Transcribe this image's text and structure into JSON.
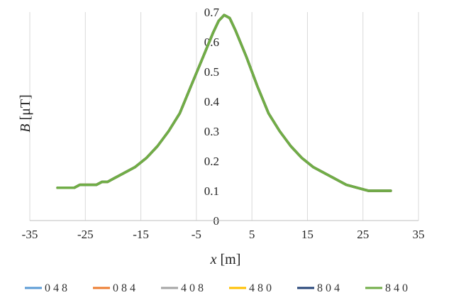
{
  "chart_data": {
    "type": "line",
    "xlabel": {
      "var": "x",
      "unit": " [m]"
    },
    "ylabel": {
      "var": "B",
      "unit": " [μT]"
    },
    "xlim": [
      -35,
      35
    ],
    "ylim": [
      0,
      0.7
    ],
    "xticks": [
      "-35",
      "-25",
      "-15",
      "-5",
      "5",
      "15",
      "25",
      "35"
    ],
    "yticks": [
      "0",
      "0.1",
      "0.2",
      "0.3",
      "0.4",
      "0.5",
      "0.6",
      "0.7"
    ],
    "grid": "vertical",
    "legend_position": "bottom",
    "series": [
      {
        "name": "0 4 8",
        "color": "#5b9bd5"
      },
      {
        "name": "0 8 4",
        "color": "#ed7d31"
      },
      {
        "name": "4 0 8",
        "color": "#a5a5a5"
      },
      {
        "name": "4 8 0",
        "color": "#ffc000"
      },
      {
        "name": "8 0 4",
        "color": "#264478"
      },
      {
        "name": "8 4 0",
        "color": "#70ad47"
      }
    ],
    "x": [
      -30,
      -27,
      -26,
      -23,
      -22,
      -21,
      -20,
      -18,
      -16,
      -14,
      -12,
      -10,
      -8,
      -6,
      -4,
      -2,
      -1,
      0,
      1,
      2,
      4,
      6,
      8,
      10,
      12,
      14,
      16,
      18,
      20,
      22,
      24,
      26,
      28,
      30
    ],
    "y": [
      0.11,
      0.11,
      0.12,
      0.12,
      0.13,
      0.13,
      0.14,
      0.16,
      0.18,
      0.21,
      0.25,
      0.3,
      0.36,
      0.45,
      0.54,
      0.63,
      0.67,
      0.69,
      0.68,
      0.64,
      0.55,
      0.45,
      0.36,
      0.3,
      0.25,
      0.21,
      0.18,
      0.16,
      0.14,
      0.12,
      0.11,
      0.1,
      0.1,
      0.1
    ]
  }
}
